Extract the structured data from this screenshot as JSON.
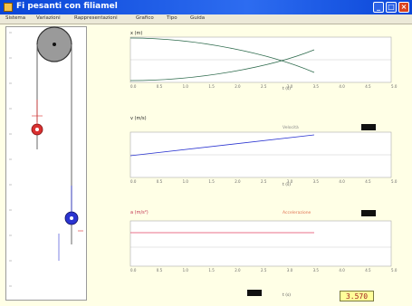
{
  "window": {
    "title": "Fi pesanti con filiamel"
  },
  "menu": [
    "Sistema",
    "Variazioni",
    "Rappresentazioni",
    "Grafico",
    "Tipo",
    "Guida"
  ],
  "panels": [
    {
      "label": "x (m)",
      "axis_label": "t (s)",
      "tick_labels": [
        "0.0",
        "0.5",
        "1.0",
        "1.5",
        "2.0",
        "2.5",
        "3.0",
        "3.5",
        "4.0",
        "4.5",
        "5.0"
      ]
    },
    {
      "label": "v (m/s)",
      "axis_label": "t (s)",
      "extra_label": "Velocità",
      "tick_labels": [
        "0.0",
        "0.5",
        "1.0",
        "1.5",
        "2.0",
        "2.5",
        "3.0",
        "3.5",
        "4.0",
        "4.5",
        "5.0"
      ]
    },
    {
      "label": "a (m/s²)",
      "axis_label": "t (s)",
      "extra_label": "Accelerazione",
      "tick_labels": [
        "0.0",
        "0.5",
        "1.0",
        "1.5",
        "2.0",
        "2.5",
        "3.0",
        "3.5",
        "4.0",
        "4.5",
        "5.0"
      ]
    }
  ],
  "bottom": {
    "label": "t (s)",
    "readout": "3.570"
  },
  "colors": {
    "titlebar": "#0a46d8",
    "mass1": "#d93030",
    "mass2": "#2a34d0",
    "accel": "#e04060"
  }
}
